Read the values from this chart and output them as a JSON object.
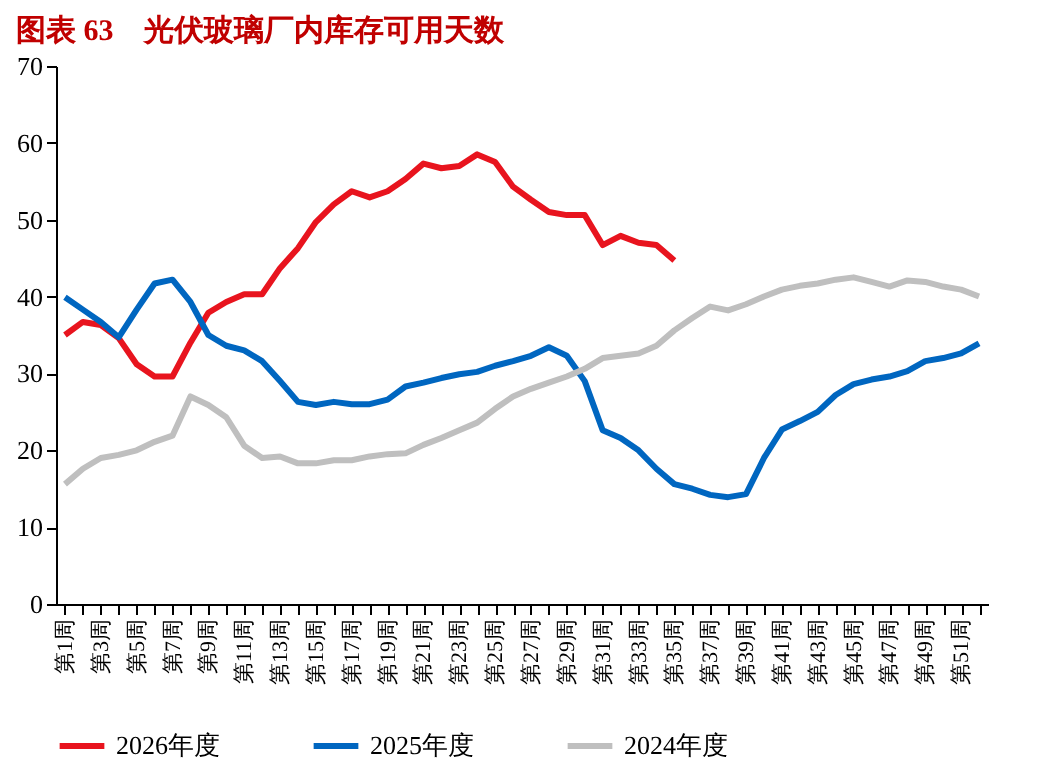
{
  "chart_data": {
    "type": "line",
    "title": "图表 63　光伏玻璃厂内库存可用天数",
    "categories": [
      "第1周",
      null,
      "第3周",
      null,
      "第5周",
      null,
      "第7周",
      null,
      "第9周",
      null,
      "第11周",
      null,
      "第13周",
      null,
      "第15周",
      null,
      "第17周",
      null,
      "第19周",
      null,
      "第21周",
      null,
      "第23周",
      null,
      "第25周",
      null,
      "第27周",
      null,
      "第29周",
      null,
      "第31周",
      null,
      "第33周",
      null,
      "第35周",
      null,
      "第37周",
      null,
      "第39周",
      null,
      "第41周",
      null,
      "第43周",
      null,
      "第45周",
      null,
      "第47周",
      null,
      "第49周",
      null,
      "第51周",
      null
    ],
    "ylim": [
      0,
      70
    ],
    "yticks": [
      0,
      10,
      20,
      30,
      40,
      50,
      60,
      70
    ],
    "grid": false,
    "legend": "bottom",
    "marker": "none",
    "line_style": "solid",
    "series": [
      {
        "name": "2026年度",
        "color": "#e8141e",
        "values": [
          35.0,
          36.7,
          36.3,
          34.6,
          31.2,
          29.6,
          29.6,
          34.0,
          37.9,
          39.3,
          40.3,
          40.3,
          43.7,
          46.3,
          49.7,
          52.0,
          53.7,
          52.9,
          53.7,
          55.3,
          57.3,
          56.7,
          57.0,
          58.5,
          57.5,
          54.3,
          52.6,
          51.0,
          50.6,
          50.6,
          46.7,
          47.9,
          47.0,
          46.7,
          44.7,
          null,
          null,
          null,
          null,
          null,
          null,
          null,
          null,
          null,
          null,
          null,
          null,
          null,
          null,
          null,
          null,
          null
        ]
      },
      {
        "name": "2025年度",
        "color": "#0066c0",
        "values": [
          39.9,
          38.3,
          36.7,
          34.7,
          38.3,
          41.7,
          42.2,
          39.3,
          35.0,
          33.6,
          33.0,
          31.6,
          29.0,
          26.3,
          25.9,
          26.3,
          26.0,
          26.0,
          26.6,
          28.3,
          28.8,
          29.4,
          29.9,
          30.2,
          31.0,
          31.6,
          32.3,
          33.4,
          32.3,
          29.0,
          22.6,
          21.6,
          20.0,
          17.6,
          15.6,
          15.0,
          14.2,
          13.9,
          14.3,
          19.0,
          22.7,
          23.8,
          25.0,
          27.2,
          28.6,
          29.2,
          29.6,
          30.3,
          31.6,
          32.0,
          32.6,
          33.9
        ]
      },
      {
        "name": "2024年度",
        "color": "#bfbfbf",
        "values": [
          15.6,
          17.6,
          19.0,
          19.4,
          20.0,
          21.1,
          21.9,
          27.0,
          25.9,
          24.3,
          20.6,
          19.0,
          19.2,
          18.3,
          18.3,
          18.7,
          18.7,
          19.2,
          19.5,
          19.6,
          20.7,
          21.6,
          22.6,
          23.6,
          25.4,
          27.0,
          28.0,
          28.8,
          29.6,
          30.6,
          32.0,
          32.3,
          32.6,
          33.6,
          35.6,
          37.2,
          38.7,
          38.2,
          39.0,
          40.0,
          40.9,
          41.4,
          41.7,
          42.2,
          42.5,
          41.9,
          41.3,
          42.1,
          41.9,
          41.3,
          40.9,
          40.0
        ]
      }
    ]
  }
}
